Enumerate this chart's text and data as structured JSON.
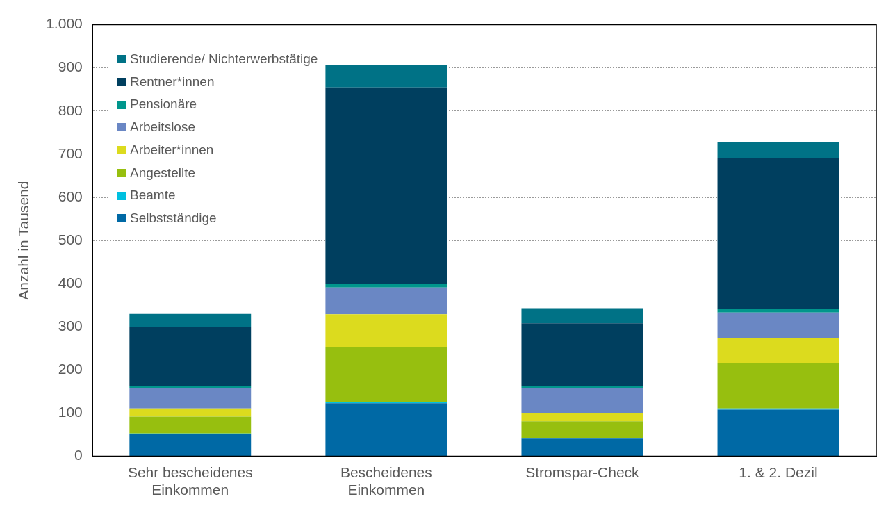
{
  "chart_data": {
    "type": "bar",
    "stacked": true,
    "ylabel": "Anzahl in Tausend",
    "categories": [
      "Sehr bescheidenes Einkommen",
      "Bescheidenes Einkommen",
      "Stromspar-Check",
      "1. & 2. Dezil"
    ],
    "series": [
      {
        "name": "Selbstständige",
        "color": "#0069a5",
        "values": [
          51,
          123,
          41,
          108
        ]
      },
      {
        "name": "Beamte",
        "color": "#00c0e0",
        "values": [
          2,
          3,
          2,
          3
        ]
      },
      {
        "name": "Angestellte",
        "color": "#97bf0f",
        "values": [
          39,
          127,
          38,
          105
        ]
      },
      {
        "name": "Arbeiter*innen",
        "color": "#dcdb1e",
        "values": [
          19,
          76,
          19,
          57
        ]
      },
      {
        "name": "Arbeitslose",
        "color": "#6a87c4",
        "values": [
          46,
          62,
          57,
          60
        ]
      },
      {
        "name": "Pensionäre",
        "color": "#00968c",
        "values": [
          5,
          9,
          5,
          8
        ]
      },
      {
        "name": "Rentner*innen",
        "color": "#003f5f",
        "values": [
          137,
          455,
          146,
          349
        ]
      },
      {
        "name": "Studierende/ Nichterwerbstätige",
        "color": "#007286",
        "values": [
          31,
          52,
          35,
          38
        ]
      }
    ],
    "ylim": [
      0,
      1000
    ],
    "yticks": [
      0,
      100,
      200,
      300,
      400,
      500,
      600,
      700,
      800,
      900,
      {
        "value": 1000,
        "label": "1.000"
      }
    ],
    "grid": true,
    "legend": "top left"
  }
}
